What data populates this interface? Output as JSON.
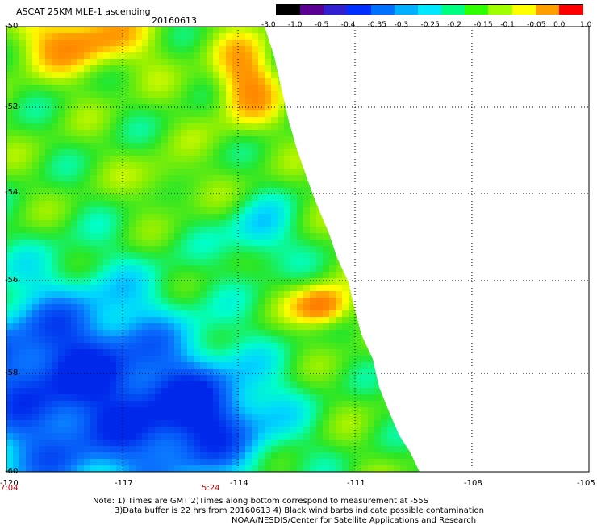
{
  "header": {
    "title": "ASCAT 25KM MLE-1 ascending",
    "date": "20160613"
  },
  "colorbar": {
    "ticks": [
      "-3.0",
      "-1.0",
      "-0.5",
      "-0.4",
      "-0.35",
      "-0.3",
      "-0.25",
      "-0.2",
      "-0.15",
      "-0.1",
      "-0.05",
      "0.0",
      "1.0"
    ],
    "colors": [
      "#000000",
      "#5a0090",
      "#3020d0",
      "#0030ff",
      "#0070ff",
      "#00b0ff",
      "#00e8ff",
      "#00ff80",
      "#30ff00",
      "#a0ff00",
      "#ffff00",
      "#ffa000",
      "#ff0000"
    ]
  },
  "axes": {
    "y_labels": [
      "-50",
      "-52",
      "-54",
      "-56",
      "-58",
      "-60"
    ],
    "x_labels": [
      "-120",
      "-117",
      "-114",
      "-111",
      "-108",
      "-105"
    ],
    "time_labels": [
      "7:04",
      "5:24"
    ],
    "time_label_color": "#cc0000"
  },
  "notes": [
    "Note: 1) Times are GMT 2)Times along bottom correspond to measurement at -55S",
    "3)Data buffer is 22 hrs from 20160613 4) Black wind barbs indicate possible contamination",
    "NOAA/NESDIS/Center for Satellite Applications and Research"
  ]
}
